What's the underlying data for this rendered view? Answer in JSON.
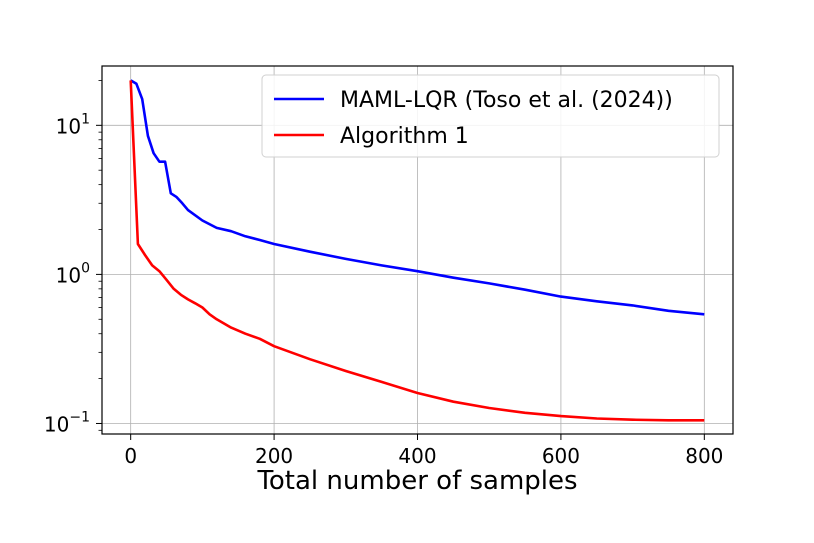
{
  "chart_data": {
    "type": "line",
    "title": "",
    "xlabel": "Total number of samples",
    "ylabel": "",
    "y_scale": "log",
    "xlim": [
      -40,
      840
    ],
    "ylim": [
      0.085,
      25
    ],
    "x_ticks": [
      0,
      200,
      400,
      600,
      800
    ],
    "x_tick_labels": [
      "0",
      "200",
      "400",
      "600",
      "800"
    ],
    "y_ticks": [
      {
        "value": 0.1,
        "base": "10",
        "exp": "−1"
      },
      {
        "value": 1,
        "base": "10",
        "exp": "0"
      },
      {
        "value": 10,
        "base": "10",
        "exp": "1"
      }
    ],
    "grid": true,
    "legend_position": "upper-right",
    "series": [
      {
        "name": "MAML-LQR (Toso et al. (2024))",
        "color": "#0000ff",
        "x": [
          0,
          8,
          16,
          24,
          32,
          40,
          48,
          56,
          64,
          72,
          80,
          100,
          120,
          140,
          160,
          180,
          200,
          250,
          300,
          350,
          400,
          450,
          500,
          550,
          600,
          650,
          700,
          750,
          800
        ],
        "y": [
          20,
          19,
          15,
          8.5,
          6.5,
          5.7,
          5.7,
          3.5,
          3.3,
          3.0,
          2.7,
          2.3,
          2.05,
          1.95,
          1.8,
          1.7,
          1.6,
          1.42,
          1.27,
          1.15,
          1.05,
          0.95,
          0.87,
          0.79,
          0.71,
          0.66,
          0.62,
          0.57,
          0.54
        ]
      },
      {
        "name": "Algorithm 1",
        "color": "#ff0000",
        "x": [
          0,
          10,
          20,
          30,
          40,
          50,
          60,
          70,
          80,
          90,
          100,
          110,
          120,
          140,
          160,
          180,
          200,
          250,
          300,
          350,
          400,
          450,
          500,
          550,
          600,
          650,
          700,
          750,
          800
        ],
        "y": [
          20,
          1.6,
          1.35,
          1.15,
          1.05,
          0.92,
          0.8,
          0.73,
          0.68,
          0.64,
          0.6,
          0.54,
          0.5,
          0.44,
          0.4,
          0.37,
          0.33,
          0.27,
          0.225,
          0.19,
          0.16,
          0.14,
          0.127,
          0.118,
          0.112,
          0.108,
          0.106,
          0.105,
          0.105
        ]
      }
    ]
  }
}
